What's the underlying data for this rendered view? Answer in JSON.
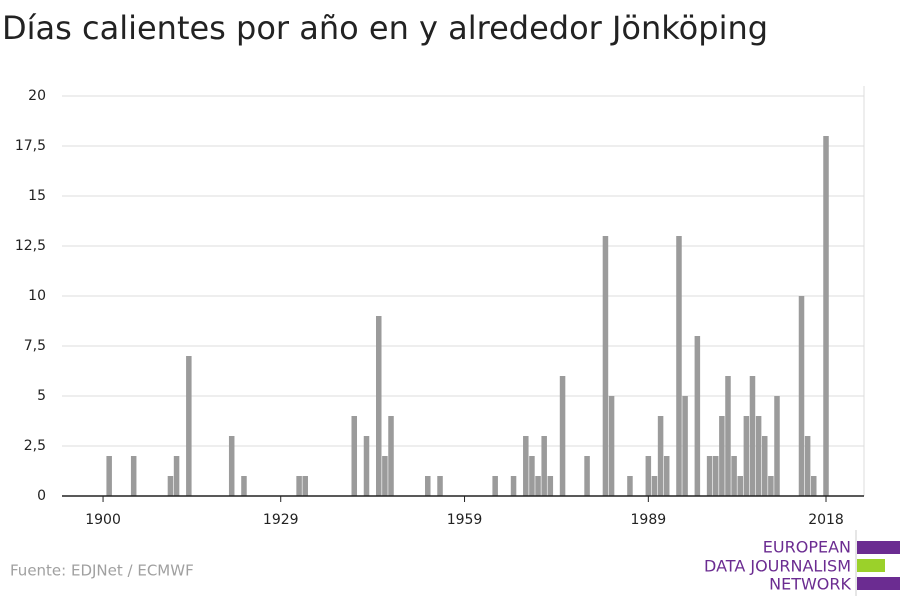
{
  "chart_data": {
    "type": "bar",
    "title": "Días calientes por año en y alrededor Jönköping",
    "x": [
      1901,
      1905,
      1911,
      1912,
      1914,
      1921,
      1923,
      1932,
      1933,
      1941,
      1943,
      1945,
      1946,
      1947,
      1953,
      1955,
      1964,
      1967,
      1969,
      1970,
      1971,
      1972,
      1973,
      1975,
      1979,
      1982,
      1983,
      1986,
      1989,
      1990,
      1991,
      1992,
      1994,
      1995,
      1997,
      1999,
      2000,
      2001,
      2002,
      2003,
      2004,
      2005,
      2006,
      2007,
      2008,
      2009,
      2010,
      2014,
      2015,
      2016,
      2018
    ],
    "values": [
      2,
      2,
      1,
      2,
      7,
      3,
      1,
      1,
      1,
      4,
      3,
      9,
      2,
      4,
      1,
      1,
      1,
      1,
      3,
      2,
      1,
      3,
      1,
      6,
      2,
      13,
      5,
      1,
      2,
      1,
      4,
      2,
      13,
      5,
      8,
      2,
      2,
      4,
      6,
      2,
      1,
      4,
      6,
      4,
      3,
      1,
      5,
      10,
      3,
      1,
      18
    ],
    "color": "#9b9b9b",
    "xlim": [
      1893.3,
      2024.2
    ],
    "xticks": [
      1900,
      1929,
      1959,
      1989,
      2018
    ],
    "ylim": [
      0,
      20
    ],
    "yticks": [
      0,
      {
        "value": 2.5,
        "label": "2,5"
      },
      5,
      {
        "value": 7.5,
        "label": "7,5"
      },
      10,
      {
        "value": 12.5,
        "label": "12,5"
      },
      15,
      {
        "value": 17.5,
        "label": "17,5"
      },
      20
    ],
    "grid": true
  },
  "footer": {
    "source": "Fuente: EDJNet / ECMWF",
    "logo": [
      "EUROPEAN",
      "DATA JOURNALISM",
      "NETWORK"
    ]
  }
}
